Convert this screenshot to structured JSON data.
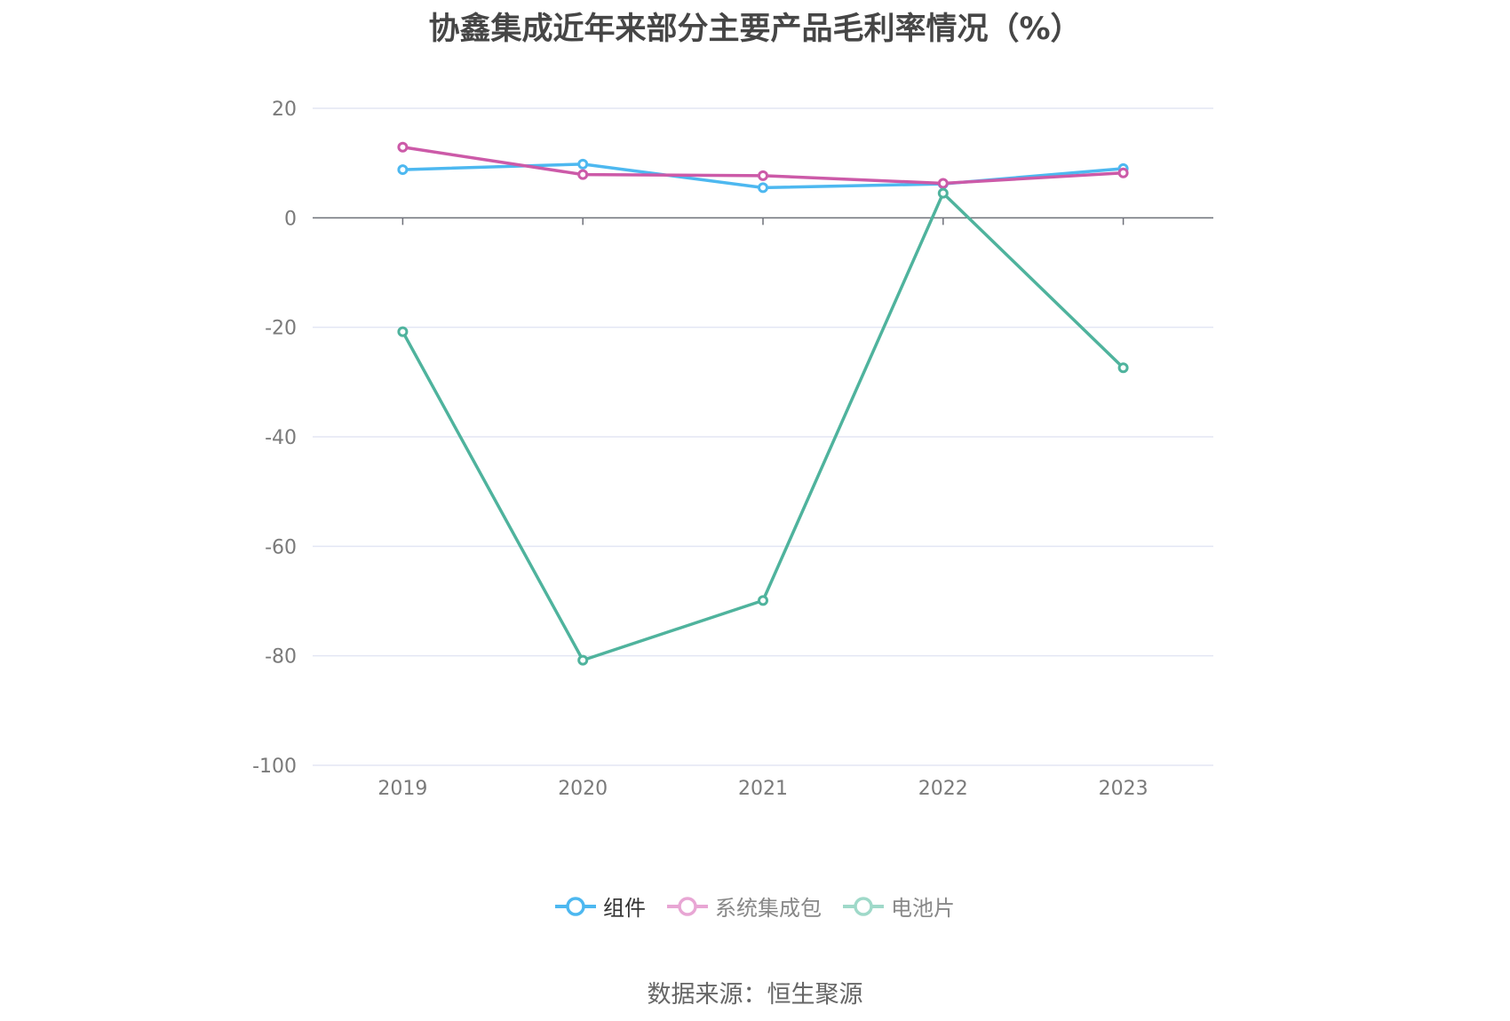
{
  "title": "协鑫集成近年来部分主要产品毛利率情况（%）",
  "source_text": "数据来源：恒生聚源",
  "chart_data": {
    "type": "line",
    "title": "协鑫集成近年来部分主要产品毛利率情况（%）",
    "xlabel": "",
    "ylabel": "",
    "categories": [
      "2019",
      "2020",
      "2021",
      "2022",
      "2023"
    ],
    "ylim": [
      -100,
      20
    ],
    "yticks": [
      20,
      0,
      -20,
      -40,
      -60,
      -80,
      -100
    ],
    "grid": true,
    "legend_position": "bottom",
    "series": [
      {
        "name": "组件",
        "color": "#4db8f0",
        "values": [
          8.8,
          9.8,
          5.5,
          6.2,
          9.0
        ]
      },
      {
        "name": "系统集成包",
        "color": "#cc5aa8",
        "values": [
          12.9,
          7.9,
          7.7,
          6.3,
          8.2
        ]
      },
      {
        "name": "电池片",
        "color": "#4fb39d",
        "values": [
          -20.8,
          -80.8,
          -69.9,
          4.5,
          -27.4
        ]
      }
    ]
  },
  "legend": {
    "items": [
      {
        "label": "组件",
        "color": "#4db8f0",
        "active": true
      },
      {
        "label": "系统集成包",
        "color": "#e8a6d4",
        "active": false
      },
      {
        "label": "电池片",
        "color": "#9fd9c9",
        "active": false
      }
    ]
  }
}
